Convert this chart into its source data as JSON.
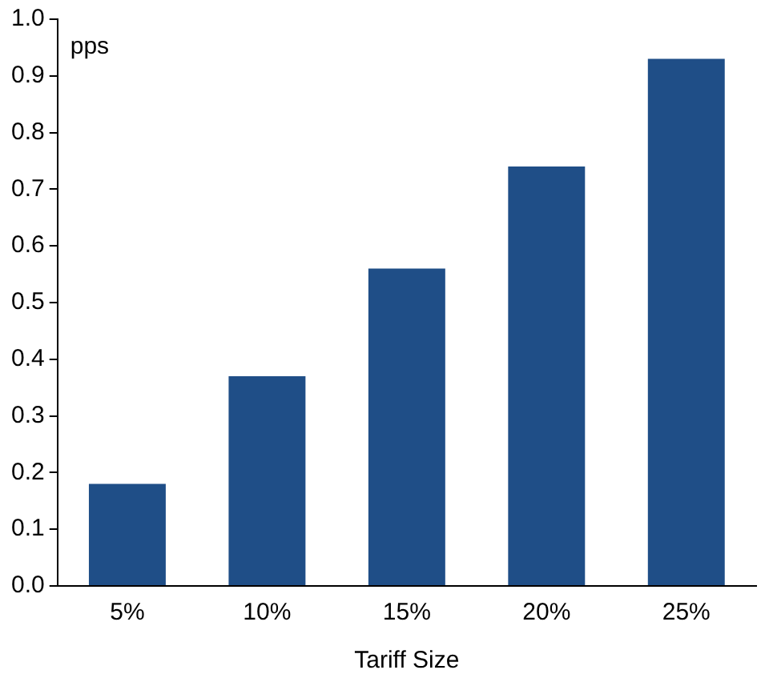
{
  "chart_data": {
    "type": "bar",
    "ylabel": "pps",
    "xlabel": "Tariff Size",
    "categories": [
      "5%",
      "10%",
      "15%",
      "20%",
      "25%"
    ],
    "values": [
      0.18,
      0.37,
      0.56,
      0.74,
      0.93
    ],
    "color": "#1f4e87",
    "ylim": [
      0,
      1
    ],
    "yticks": [
      {
        "value": 0,
        "label": "0.0"
      },
      {
        "value": 0.1,
        "label": "0.1"
      },
      {
        "value": 0.2,
        "label": "0.2"
      },
      {
        "value": 0.3,
        "label": "0.3"
      },
      {
        "value": 0.4,
        "label": "0.4"
      },
      {
        "value": 0.5,
        "label": "0.5"
      },
      {
        "value": 0.6,
        "label": "0.6"
      },
      {
        "value": 0.7,
        "label": "0.7"
      },
      {
        "value": 0.8,
        "label": "0.8"
      },
      {
        "value": 0.9,
        "label": "0.9"
      },
      {
        "value": 1,
        "label": "1.0"
      }
    ],
    "grid": false,
    "legend": false
  }
}
